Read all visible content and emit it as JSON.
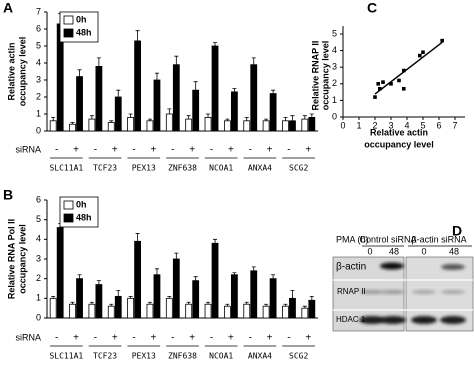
{
  "chart_data": [
    {
      "type": "bar",
      "panel": "A",
      "ylabel": [
        "Relative actin",
        "occupancy  level"
      ],
      "groups": [
        "SLC11A1",
        "TCF23",
        "PEX13",
        "ZNF638",
        "NCOA1",
        "ANXA4",
        "SCG2"
      ],
      "row_label": "siRNA",
      "categories": [
        "-",
        "+",
        "-",
        "+",
        "-",
        "+",
        "-",
        "+",
        "-",
        "+",
        "-",
        "+",
        "-",
        "+"
      ],
      "series": [
        {
          "name": "0h",
          "color": "#ffffff",
          "values": [
            0.6,
            0.4,
            0.7,
            0.5,
            0.8,
            0.6,
            1.0,
            0.7,
            0.8,
            0.6,
            0.6,
            0.6,
            0.6,
            0.7
          ],
          "errors": [
            0.2,
            0.1,
            0.2,
            0.1,
            0.2,
            0.1,
            0.3,
            0.2,
            0.2,
            0.1,
            0.2,
            0.1,
            0.2,
            0.2
          ]
        },
        {
          "name": "48h",
          "color": "#000000",
          "values": [
            6.3,
            3.2,
            3.8,
            2.0,
            5.3,
            3.0,
            3.9,
            2.4,
            5.0,
            2.3,
            3.9,
            2.2,
            0.6,
            0.8
          ],
          "errors": [
            0.6,
            0.4,
            0.5,
            0.4,
            0.6,
            0.4,
            0.5,
            0.5,
            0.2,
            0.2,
            0.4,
            0.2,
            0.3,
            0.2
          ]
        }
      ],
      "ylim": [
        0,
        7
      ],
      "yticks": [
        0,
        1,
        2,
        3,
        4,
        5,
        6,
        7
      ]
    },
    {
      "type": "bar",
      "panel": "B",
      "ylabel": [
        "Relative RNA Pol II",
        "occupancy level"
      ],
      "groups": [
        "SLC11A1",
        "TCF23",
        "PEX13",
        "ZNF638",
        "NCOA1",
        "ANXA4",
        "SCG2"
      ],
      "row_label": "siRNA",
      "categories": [
        "-",
        "+",
        "-",
        "+",
        "-",
        "+",
        "-",
        "+",
        "-",
        "+",
        "-",
        "+",
        "-",
        "+"
      ],
      "series": [
        {
          "name": "0h",
          "color": "#ffffff",
          "values": [
            1.0,
            0.7,
            0.7,
            0.6,
            1.0,
            0.7,
            1.0,
            0.7,
            0.7,
            0.6,
            0.7,
            0.6,
            0.6,
            0.5
          ],
          "errors": [
            0.1,
            0.1,
            0.1,
            0.1,
            0.1,
            0.1,
            0.1,
            0.1,
            0.1,
            0.1,
            0.1,
            0.1,
            0.1,
            0.1
          ]
        },
        {
          "name": "48h",
          "color": "#000000",
          "values": [
            4.6,
            2.0,
            1.7,
            1.1,
            3.9,
            2.2,
            3.0,
            1.9,
            3.8,
            2.2,
            2.4,
            2.0,
            1.0,
            0.9
          ],
          "errors": [
            0.2,
            0.2,
            0.2,
            0.3,
            0.4,
            0.3,
            0.3,
            0.2,
            0.2,
            0.1,
            0.2,
            0.2,
            0.4,
            0.2
          ]
        }
      ],
      "ylim": [
        0,
        6
      ],
      "yticks": [
        0,
        1,
        2,
        3,
        4,
        5,
        6
      ]
    },
    {
      "type": "scatter",
      "panel": "C",
      "ylabel": [
        "Relative RNAP II",
        "occupancy level"
      ],
      "xlabel": [
        "Relative actin",
        "occupancy  level"
      ],
      "x": [
        2.0,
        2.2,
        2.3,
        2.5,
        3.0,
        3.5,
        3.8,
        3.8,
        4.8,
        5.0,
        6.2
      ],
      "values": [
        1.2,
        2.0,
        1.7,
        2.1,
        2.0,
        2.2,
        1.7,
        2.8,
        3.7,
        3.9,
        4.6
      ],
      "color": "#000000",
      "trendline": true,
      "xlim": [
        0,
        7
      ],
      "xticks": [
        0,
        1,
        2,
        3,
        4,
        5,
        6,
        7
      ],
      "ylim": [
        0,
        5
      ],
      "yticks": [
        0,
        1,
        2,
        3,
        4,
        5
      ]
    }
  ],
  "blot": {
    "panel": "D",
    "pma_label": "PMA (h)",
    "groups": [
      {
        "label": "Control siRNA",
        "times": [
          "0",
          "48"
        ]
      },
      {
        "label": "β-actin siRNA",
        "times": [
          "0",
          "48"
        ]
      }
    ],
    "rows": [
      "β-actin",
      "RNAP II",
      "HDAC 1"
    ]
  }
}
